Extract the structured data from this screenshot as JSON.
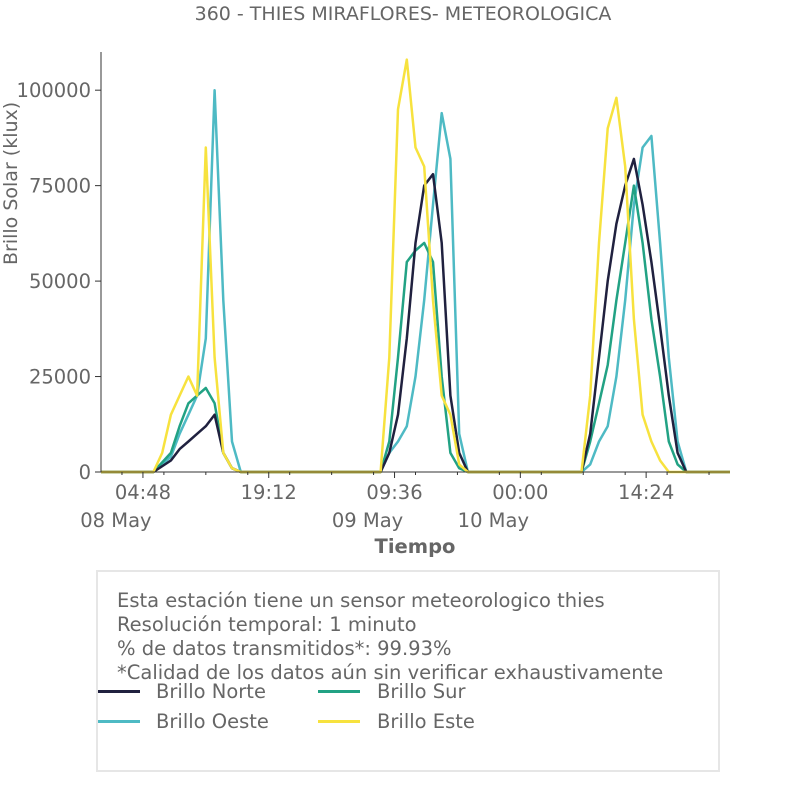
{
  "chart_data": {
    "type": "line",
    "title": "360 - THIES MIRAFLORES- METEOROLOGICA",
    "xlabel": "Tiempo",
    "ylabel": "Brillo Solar (klux)",
    "ylim": [
      0,
      110000
    ],
    "yticks": [
      0,
      25000,
      50000,
      75000,
      100000
    ],
    "ytick_labels": [
      "0",
      "25000",
      "50000",
      "75000",
      "100000"
    ],
    "xlim_hours": [
      0,
      72
    ],
    "xticks": [
      {
        "hour": 4.8,
        "label": "04:48",
        "sublabel": "08 May"
      },
      {
        "hour": 19.2,
        "label": "19:12",
        "sublabel": ""
      },
      {
        "hour": 33.6,
        "label": "09:36",
        "sublabel": "09 May"
      },
      {
        "hour": 48,
        "label": "00:00",
        "sublabel": "10 May"
      },
      {
        "hour": 62.4,
        "label": "14:24",
        "sublabel": ""
      }
    ],
    "series": [
      {
        "name": "Brillo Norte",
        "color": "#20213f",
        "points": [
          [
            0,
            0
          ],
          [
            6,
            0
          ],
          [
            8,
            3000
          ],
          [
            9,
            6000
          ],
          [
            10,
            8000
          ],
          [
            11,
            10000
          ],
          [
            12,
            12000
          ],
          [
            13,
            15000
          ],
          [
            14,
            5000
          ],
          [
            15,
            1000
          ],
          [
            16,
            0
          ],
          [
            32,
            0
          ],
          [
            33,
            5000
          ],
          [
            34,
            15000
          ],
          [
            35,
            35000
          ],
          [
            36,
            60000
          ],
          [
            37,
            75000
          ],
          [
            38,
            78000
          ],
          [
            39,
            60000
          ],
          [
            40,
            20000
          ],
          [
            41,
            5000
          ],
          [
            42,
            0
          ],
          [
            55,
            0
          ],
          [
            56,
            10000
          ],
          [
            57,
            30000
          ],
          [
            58,
            50000
          ],
          [
            59,
            65000
          ],
          [
            60,
            75000
          ],
          [
            61,
            82000
          ],
          [
            62,
            70000
          ],
          [
            63,
            55000
          ],
          [
            64,
            38000
          ],
          [
            65,
            20000
          ],
          [
            66,
            5000
          ],
          [
            67,
            0
          ],
          [
            72,
            0
          ]
        ]
      },
      {
        "name": "Brillo Sur",
        "color": "#22a284",
        "points": [
          [
            0,
            0
          ],
          [
            6,
            0
          ],
          [
            8,
            5000
          ],
          [
            9,
            12000
          ],
          [
            10,
            18000
          ],
          [
            11,
            20000
          ],
          [
            12,
            22000
          ],
          [
            13,
            18000
          ],
          [
            14,
            5000
          ],
          [
            15,
            1000
          ],
          [
            16,
            0
          ],
          [
            32,
            0
          ],
          [
            33,
            8000
          ],
          [
            34,
            30000
          ],
          [
            35,
            55000
          ],
          [
            36,
            58000
          ],
          [
            37,
            60000
          ],
          [
            38,
            55000
          ],
          [
            39,
            25000
          ],
          [
            40,
            5000
          ],
          [
            41,
            1000
          ],
          [
            42,
            0
          ],
          [
            55,
            0
          ],
          [
            56,
            8000
          ],
          [
            57,
            18000
          ],
          [
            58,
            28000
          ],
          [
            59,
            45000
          ],
          [
            60,
            60000
          ],
          [
            61,
            75000
          ],
          [
            62,
            60000
          ],
          [
            63,
            40000
          ],
          [
            64,
            25000
          ],
          [
            65,
            8000
          ],
          [
            66,
            2000
          ],
          [
            67,
            0
          ],
          [
            72,
            0
          ]
        ]
      },
      {
        "name": "Brillo Oeste",
        "color": "#4ebac4",
        "points": [
          [
            0,
            0
          ],
          [
            6,
            0
          ],
          [
            8,
            4000
          ],
          [
            9,
            10000
          ],
          [
            10,
            15000
          ],
          [
            11,
            20000
          ],
          [
            12,
            35000
          ],
          [
            13,
            100000
          ],
          [
            14,
            45000
          ],
          [
            15,
            8000
          ],
          [
            16,
            0
          ],
          [
            32,
            0
          ],
          [
            33,
            5000
          ],
          [
            34,
            8000
          ],
          [
            35,
            12000
          ],
          [
            36,
            25000
          ],
          [
            37,
            45000
          ],
          [
            38,
            70000
          ],
          [
            39,
            94000
          ],
          [
            40,
            82000
          ],
          [
            41,
            10000
          ],
          [
            42,
            0
          ],
          [
            55,
            0
          ],
          [
            56,
            2000
          ],
          [
            57,
            8000
          ],
          [
            58,
            12000
          ],
          [
            59,
            25000
          ],
          [
            60,
            45000
          ],
          [
            61,
            70000
          ],
          [
            62,
            85000
          ],
          [
            63,
            88000
          ],
          [
            64,
            60000
          ],
          [
            65,
            30000
          ],
          [
            66,
            8000
          ],
          [
            67,
            0
          ],
          [
            72,
            0
          ]
        ]
      },
      {
        "name": "Brillo Este",
        "color": "#f7e23e",
        "points": [
          [
            0,
            0
          ],
          [
            6,
            0
          ],
          [
            7,
            5000
          ],
          [
            8,
            15000
          ],
          [
            9,
            20000
          ],
          [
            10,
            25000
          ],
          [
            11,
            20000
          ],
          [
            12,
            85000
          ],
          [
            13,
            30000
          ],
          [
            14,
            5000
          ],
          [
            15,
            1000
          ],
          [
            16,
            0
          ],
          [
            32,
            0
          ],
          [
            33,
            30000
          ],
          [
            34,
            95000
          ],
          [
            35,
            108000
          ],
          [
            36,
            85000
          ],
          [
            37,
            80000
          ],
          [
            38,
            45000
          ],
          [
            39,
            20000
          ],
          [
            40,
            15000
          ],
          [
            41,
            2000
          ],
          [
            42,
            0
          ],
          [
            55,
            0
          ],
          [
            56,
            20000
          ],
          [
            57,
            60000
          ],
          [
            58,
            90000
          ],
          [
            59,
            98000
          ],
          [
            60,
            80000
          ],
          [
            61,
            40000
          ],
          [
            62,
            15000
          ],
          [
            63,
            8000
          ],
          [
            64,
            3000
          ],
          [
            65,
            0
          ],
          [
            72,
            0
          ]
        ]
      }
    ],
    "legend_placement": "bottom"
  },
  "info": {
    "line1": "Esta estación tiene un sensor meteorologico thies",
    "line2": "Resolución temporal: 1 minuto",
    "line3": "% de datos transmitidos*: 99.93%",
    "line4": "*Calidad de los datos aún sin verificar exhaustivamente"
  }
}
